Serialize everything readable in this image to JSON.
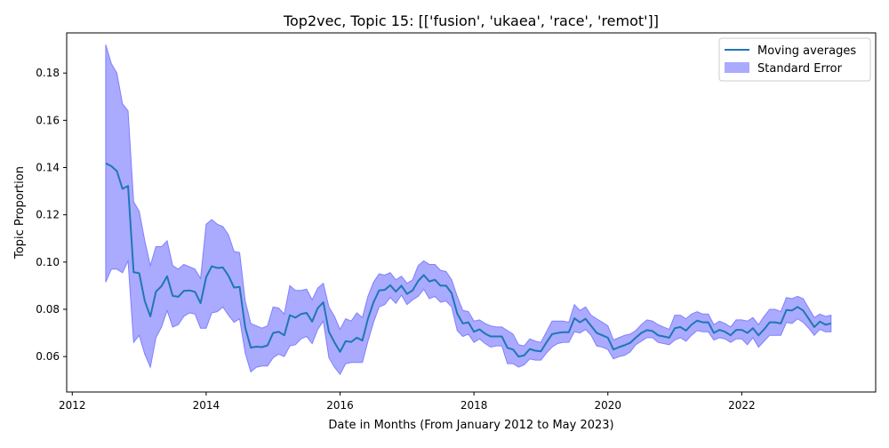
{
  "chart_data": {
    "type": "line",
    "title": "Top2vec, Topic 15: [['fusion', 'ukaea', 'race', 'remot']]",
    "xlabel": "Date in Months (From January 2012 to May 2023)",
    "ylabel": "Topic Proportion",
    "xlim": [
      "2011-12-01",
      "2024-01-01"
    ],
    "ylim": [
      0.045,
      0.197
    ],
    "x_ticks": [
      "2012",
      "2014",
      "2016",
      "2018",
      "2020",
      "2022"
    ],
    "y_ticks": [
      "0.06",
      "0.08",
      "0.10",
      "0.12",
      "0.14",
      "0.16",
      "0.18"
    ],
    "grid": false,
    "legend_position": "top-right",
    "colors": {
      "line": "#1f77b4",
      "band": "#aaaaff",
      "band_edge": "#7f7fff"
    },
    "series": [
      {
        "name": "Moving averages",
        "x": [
          "2012-07",
          "2012-08",
          "2012-09",
          "2012-10",
          "2012-11",
          "2012-12",
          "2013-01",
          "2013-02",
          "2013-03",
          "2013-04",
          "2013-05",
          "2013-06",
          "2013-07",
          "2013-08",
          "2013-09",
          "2013-10",
          "2013-11",
          "2013-12",
          "2014-01",
          "2014-02",
          "2014-03",
          "2014-04",
          "2014-05",
          "2014-06",
          "2014-07",
          "2014-08",
          "2014-09",
          "2014-10",
          "2014-11",
          "2014-12",
          "2015-01",
          "2015-02",
          "2015-03",
          "2015-04",
          "2015-05",
          "2015-06",
          "2015-07",
          "2015-08",
          "2015-09",
          "2015-10",
          "2015-11",
          "2015-12",
          "2016-01",
          "2016-02",
          "2016-03",
          "2016-04",
          "2016-05",
          "2016-06",
          "2016-07",
          "2016-08",
          "2016-09",
          "2016-10",
          "2016-11",
          "2016-12",
          "2017-01",
          "2017-02",
          "2017-03",
          "2017-04",
          "2017-05",
          "2017-06",
          "2017-07",
          "2017-08",
          "2017-09",
          "2017-10",
          "2017-11",
          "2017-12",
          "2018-01",
          "2018-02",
          "2018-03",
          "2018-04",
          "2018-05",
          "2018-06",
          "2018-07",
          "2018-08",
          "2018-09",
          "2018-10",
          "2018-11",
          "2018-12",
          "2019-01",
          "2019-02",
          "2019-03",
          "2019-04",
          "2019-05",
          "2019-06",
          "2019-07",
          "2019-08",
          "2019-09",
          "2019-10",
          "2019-11",
          "2019-12",
          "2020-01",
          "2020-02",
          "2020-03",
          "2020-04",
          "2020-05",
          "2020-06",
          "2020-07",
          "2020-08",
          "2020-09",
          "2020-10",
          "2020-11",
          "2020-12",
          "2021-01",
          "2021-02",
          "2021-03",
          "2021-04",
          "2021-05",
          "2021-06",
          "2021-07",
          "2021-08",
          "2021-09",
          "2021-10",
          "2021-11",
          "2021-12",
          "2022-01",
          "2022-02",
          "2022-03",
          "2022-04",
          "2022-05",
          "2022-06",
          "2022-07",
          "2022-08",
          "2022-09",
          "2022-10",
          "2022-11",
          "2022-12",
          "2023-01",
          "2023-02",
          "2023-03",
          "2023-04",
          "2023-05"
        ],
        "y": [
          0.1418,
          0.1406,
          0.1385,
          0.131,
          0.1322,
          0.0957,
          0.0953,
          0.0835,
          0.077,
          0.0875,
          0.0898,
          0.094,
          0.0857,
          0.0853,
          0.0878,
          0.088,
          0.0874,
          0.0826,
          0.0936,
          0.0982,
          0.0975,
          0.0977,
          0.0942,
          0.0892,
          0.0895,
          0.0723,
          0.0638,
          0.0642,
          0.064,
          0.0647,
          0.07,
          0.0705,
          0.069,
          0.0775,
          0.0765,
          0.078,
          0.0785,
          0.0748,
          0.0805,
          0.083,
          0.0705,
          0.066,
          0.062,
          0.0665,
          0.0662,
          0.068,
          0.0668,
          0.076,
          0.083,
          0.088,
          0.0882,
          0.0902,
          0.0875,
          0.09,
          0.0865,
          0.088,
          0.092,
          0.0945,
          0.0918,
          0.0925,
          0.09,
          0.09,
          0.0868,
          0.0782,
          0.074,
          0.0745,
          0.0705,
          0.0715,
          0.0697,
          0.0685,
          0.0685,
          0.0685,
          0.0637,
          0.063,
          0.06,
          0.0605,
          0.0632,
          0.0625,
          0.0622,
          0.066,
          0.0695,
          0.07,
          0.0703,
          0.0703,
          0.0762,
          0.0745,
          0.076,
          0.073,
          0.07,
          0.069,
          0.068,
          0.063,
          0.064,
          0.0648,
          0.0658,
          0.068,
          0.07,
          0.0712,
          0.0708,
          0.069,
          0.0685,
          0.068,
          0.072,
          0.0725,
          0.071,
          0.0735,
          0.0752,
          0.0745,
          0.0745,
          0.07,
          0.0713,
          0.0705,
          0.069,
          0.0713,
          0.0713,
          0.07,
          0.072,
          0.069,
          0.0715,
          0.0745,
          0.0745,
          0.074,
          0.0797,
          0.0795,
          0.081,
          0.0795,
          0.076,
          0.0725,
          0.0748,
          0.0735,
          0.074
        ]
      },
      {
        "name": "Standard Error",
        "type": "band",
        "lower": [
          0.0915,
          0.097,
          0.097,
          0.0955,
          0.1005,
          0.066,
          0.069,
          0.061,
          0.0555,
          0.068,
          0.0725,
          0.0795,
          0.0725,
          0.0735,
          0.077,
          0.0785,
          0.078,
          0.072,
          0.072,
          0.0785,
          0.079,
          0.081,
          0.0775,
          0.0745,
          0.076,
          0.0615,
          0.0535,
          0.0555,
          0.056,
          0.056,
          0.0595,
          0.061,
          0.06,
          0.0645,
          0.065,
          0.0675,
          0.0685,
          0.0655,
          0.0715,
          0.075,
          0.0595,
          0.0555,
          0.0525,
          0.057,
          0.0575,
          0.0575,
          0.0575,
          0.0665,
          0.0745,
          0.081,
          0.082,
          0.085,
          0.0825,
          0.086,
          0.082,
          0.084,
          0.0855,
          0.0885,
          0.0845,
          0.0855,
          0.083,
          0.0835,
          0.081,
          0.071,
          0.0685,
          0.0695,
          0.066,
          0.0675,
          0.0655,
          0.064,
          0.0645,
          0.0645,
          0.057,
          0.057,
          0.0555,
          0.0565,
          0.059,
          0.0585,
          0.0585,
          0.0615,
          0.064,
          0.0655,
          0.066,
          0.066,
          0.0705,
          0.07,
          0.0715,
          0.069,
          0.0645,
          0.064,
          0.063,
          0.059,
          0.06,
          0.0605,
          0.062,
          0.065,
          0.0665,
          0.068,
          0.068,
          0.066,
          0.0655,
          0.065,
          0.067,
          0.068,
          0.0665,
          0.069,
          0.071,
          0.0705,
          0.0705,
          0.067,
          0.068,
          0.0675,
          0.066,
          0.0675,
          0.0675,
          0.065,
          0.068,
          0.064,
          0.0665,
          0.069,
          0.069,
          0.069,
          0.0745,
          0.074,
          0.076,
          0.0745,
          0.072,
          0.069,
          0.0715,
          0.0705,
          0.0705
        ],
        "upper": [
          0.192,
          0.184,
          0.18,
          0.167,
          0.164,
          0.1255,
          0.1215,
          0.109,
          0.0985,
          0.1065,
          0.1065,
          0.109,
          0.0985,
          0.097,
          0.099,
          0.098,
          0.097,
          0.093,
          0.116,
          0.118,
          0.116,
          0.115,
          0.1115,
          0.1045,
          0.104,
          0.0835,
          0.074,
          0.073,
          0.072,
          0.073,
          0.081,
          0.0805,
          0.078,
          0.09,
          0.088,
          0.088,
          0.0885,
          0.084,
          0.089,
          0.091,
          0.081,
          0.077,
          0.0715,
          0.076,
          0.075,
          0.0785,
          0.0765,
          0.0855,
          0.0915,
          0.095,
          0.0945,
          0.0955,
          0.0925,
          0.094,
          0.091,
          0.0925,
          0.0985,
          0.1005,
          0.099,
          0.099,
          0.0965,
          0.096,
          0.0925,
          0.0855,
          0.0795,
          0.079,
          0.075,
          0.0755,
          0.074,
          0.073,
          0.0725,
          0.0725,
          0.071,
          0.0695,
          0.065,
          0.0645,
          0.0675,
          0.0665,
          0.066,
          0.0705,
          0.075,
          0.075,
          0.075,
          0.0745,
          0.082,
          0.0795,
          0.081,
          0.0775,
          0.076,
          0.0745,
          0.073,
          0.067,
          0.068,
          0.069,
          0.0695,
          0.071,
          0.0735,
          0.0755,
          0.075,
          0.0735,
          0.0725,
          0.0715,
          0.0775,
          0.0775,
          0.076,
          0.078,
          0.079,
          0.078,
          0.078,
          0.0735,
          0.075,
          0.074,
          0.0725,
          0.0755,
          0.0755,
          0.075,
          0.0765,
          0.0735,
          0.077,
          0.08,
          0.08,
          0.079,
          0.085,
          0.0845,
          0.0855,
          0.0845,
          0.0805,
          0.0765,
          0.078,
          0.077,
          0.0775
        ]
      }
    ]
  }
}
